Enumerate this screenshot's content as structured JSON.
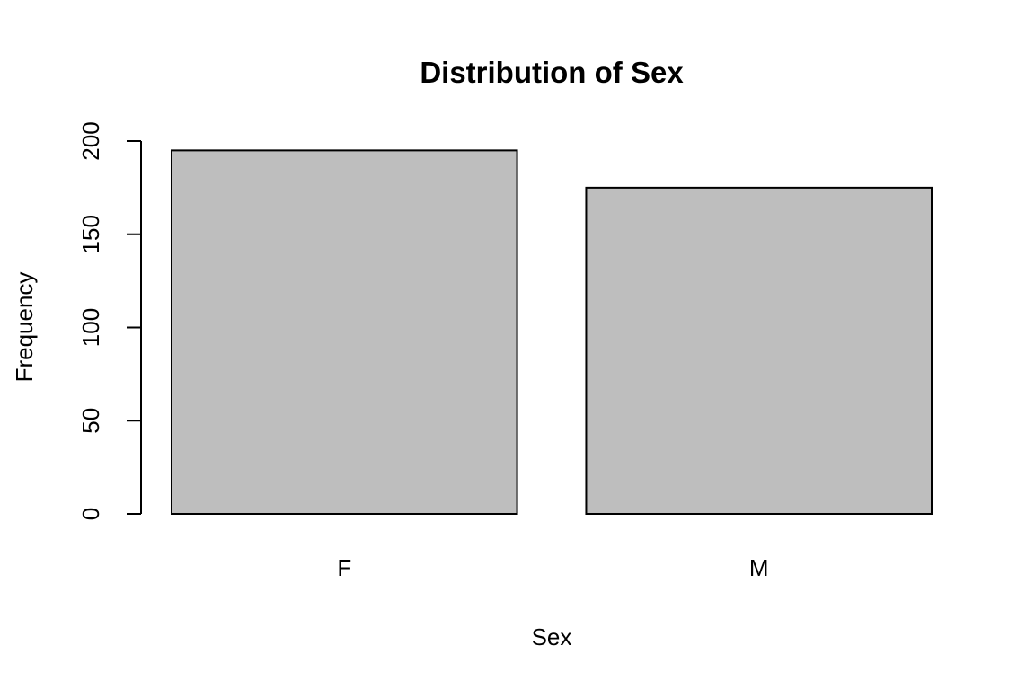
{
  "chart_data": {
    "type": "bar",
    "title": "Distribution of Sex",
    "xlabel": "Sex",
    "ylabel": "Frequency",
    "categories": [
      "F",
      "M"
    ],
    "values": [
      195,
      175
    ],
    "ylim": [
      0,
      200
    ],
    "yticks": [
      0,
      50,
      100,
      150,
      200
    ],
    "bar_color": "#bebebe",
    "grid": false,
    "legend": "none"
  }
}
